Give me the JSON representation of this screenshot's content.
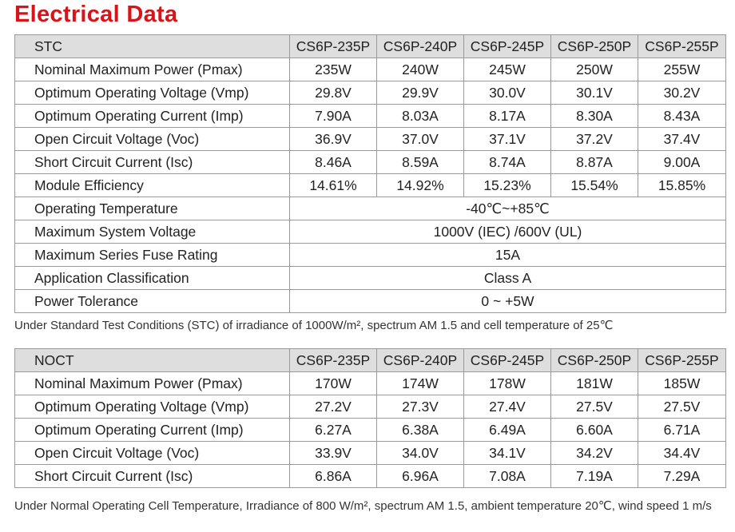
{
  "title": "Electrical Data",
  "stc": {
    "header": [
      "STC",
      "CS6P-235P",
      "CS6P-240P",
      "CS6P-245P",
      "CS6P-250P",
      "CS6P-255P"
    ],
    "rows": [
      [
        "Nominal Maximum Power  (Pmax)",
        "235W",
        "240W",
        "245W",
        "250W",
        "255W"
      ],
      [
        "Optimum Operating Voltage (Vmp)",
        "29.8V",
        "29.9V",
        "30.0V",
        "30.1V",
        "30.2V"
      ],
      [
        "Optimum Operating Current (Imp)",
        "7.90A",
        "8.03A",
        "8.17A",
        "8.30A",
        "8.43A"
      ],
      [
        "Open Circuit Voltage (Voc)",
        "36.9V",
        "37.0V",
        "37.1V",
        "37.2V",
        "37.4V"
      ],
      [
        "Short Circuit Current (Isc)",
        "8.46A",
        "8.59A",
        "8.74A",
        "8.87A",
        "9.00A"
      ],
      [
        "Module Efficiency",
        "14.61%",
        "14.92%",
        "15.23%",
        "15.54%",
        "15.85%"
      ],
      [
        "Operating Temperature",
        "-40℃~+85℃"
      ],
      [
        "Maximum System Voltage",
        "1000V (IEC) /600V (UL)"
      ],
      [
        "Maximum Series Fuse Rating",
        "15A"
      ],
      [
        "Application Classification",
        "Class A"
      ],
      [
        "Power Tolerance",
        "0 ~ +5W"
      ]
    ],
    "note": "Under Standard Test Conditions (STC) of irradiance of 1000W/m², spectrum AM 1.5 and cell temperature of 25℃"
  },
  "noct": {
    "header": [
      "NOCT",
      "CS6P-235P",
      "CS6P-240P",
      "CS6P-245P",
      "CS6P-250P",
      "CS6P-255P"
    ],
    "rows": [
      [
        "Nominal Maximum Power  (Pmax)",
        "170W",
        "174W",
        "178W",
        "181W",
        "185W"
      ],
      [
        "Optimum Operating Voltage (Vmp)",
        "27.2V",
        "27.3V",
        "27.4V",
        "27.5V",
        "27.5V"
      ],
      [
        "Optimum Operating Current (Imp)",
        "6.27A",
        "6.38A",
        "6.49A",
        "6.60A",
        "6.71A"
      ],
      [
        "Open Circuit Voltage (Voc)",
        "33.9V",
        "34.0V",
        "34.1V",
        "34.2V",
        "34.4V"
      ],
      [
        "Short Circuit Current (Isc)",
        "6.86A",
        "6.96A",
        "7.08A",
        "7.19A",
        "7.29A"
      ]
    ],
    "note": "Under Normal Operating Cell Temperature, Irradiance of 800 W/m², spectrum AM 1.5, ambient temperature 20℃, wind speed 1 m/s"
  }
}
